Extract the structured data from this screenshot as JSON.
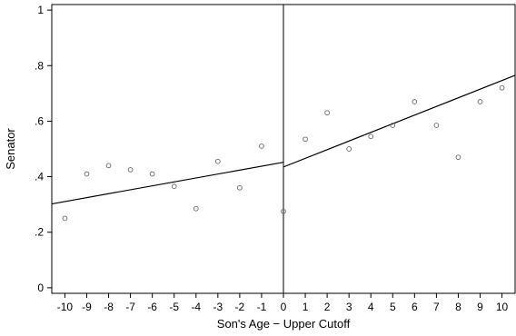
{
  "chart_data": {
    "type": "scatter",
    "title": "",
    "xlabel": "Son's Age − Upper Cutoff",
    "ylabel": "Senator",
    "xlim": [
      -10.6,
      10.6
    ],
    "ylim": [
      -0.02,
      1.02
    ],
    "x_ticks": [
      -10,
      -9,
      -8,
      -7,
      -6,
      -5,
      -4,
      -3,
      -2,
      -1,
      0,
      1,
      2,
      3,
      4,
      5,
      6,
      7,
      8,
      9,
      10
    ],
    "x_tick_labels": [
      "-10",
      "-9",
      "-8",
      "-7",
      "-6",
      "-5",
      "-4",
      "-3",
      "-2",
      "-1",
      "0",
      "1",
      "2",
      "3",
      "4",
      "5",
      "6",
      "7",
      "8",
      "9",
      "10"
    ],
    "y_ticks": [
      0,
      0.2,
      0.4,
      0.6,
      0.8,
      1
    ],
    "y_tick_labels": [
      "0",
      ".2",
      ".4",
      ".6",
      ".8",
      "1"
    ],
    "cutoff_x": 0,
    "grid": false,
    "points": [
      {
        "x": -10,
        "y": 0.25
      },
      {
        "x": -9,
        "y": 0.41
      },
      {
        "x": -8,
        "y": 0.44
      },
      {
        "x": -7,
        "y": 0.425
      },
      {
        "x": -6,
        "y": 0.41
      },
      {
        "x": -5,
        "y": 0.365
      },
      {
        "x": -4,
        "y": 0.285
      },
      {
        "x": -3,
        "y": 0.455
      },
      {
        "x": -2,
        "y": 0.36
      },
      {
        "x": -1,
        "y": 0.51
      },
      {
        "x": 0,
        "y": 0.275
      },
      {
        "x": 1,
        "y": 0.535
      },
      {
        "x": 2,
        "y": 0.63
      },
      {
        "x": 3,
        "y": 0.5
      },
      {
        "x": 4,
        "y": 0.545
      },
      {
        "x": 5,
        "y": 0.585
      },
      {
        "x": 6,
        "y": 0.67
      },
      {
        "x": 7,
        "y": 0.585
      },
      {
        "x": 8,
        "y": 0.47
      },
      {
        "x": 9,
        "y": 0.67
      },
      {
        "x": 10,
        "y": 0.72
      }
    ],
    "fit_lines": [
      {
        "x": [
          -10.6,
          0
        ],
        "y": [
          0.302,
          0.452
        ]
      },
      {
        "x": [
          0,
          10.6
        ],
        "y": [
          0.435,
          0.765
        ]
      }
    ]
  }
}
